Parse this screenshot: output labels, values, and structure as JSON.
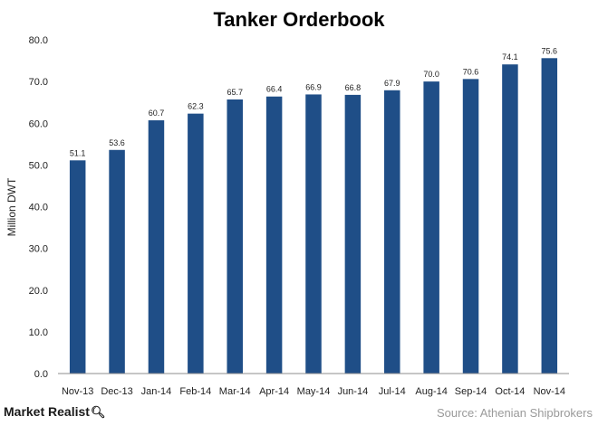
{
  "chart_data": {
    "type": "bar",
    "title": "Tanker Orderbook",
    "ylabel": "Million DWT",
    "xlabel": "",
    "categories": [
      "Nov-13",
      "Dec-13",
      "Jan-14",
      "Feb-14",
      "Mar-14",
      "Apr-14",
      "May-14",
      "Jun-14",
      "Jul-14",
      "Aug-14",
      "Sep-14",
      "Oct-14",
      "Nov-14"
    ],
    "values": [
      51.1,
      53.6,
      60.7,
      62.3,
      65.7,
      66.4,
      66.9,
      66.8,
      67.9,
      70.0,
      70.6,
      74.1,
      75.6
    ],
    "data_labels": [
      "51.1",
      "53.6",
      "60.7",
      "62.3",
      "65.7",
      "66.4",
      "66.9",
      "66.8",
      "67.9",
      "70.0",
      "70.6",
      "74.1",
      "75.6"
    ],
    "ylim": [
      0,
      80
    ],
    "y_ticks": [
      "0.0",
      "10.0",
      "20.0",
      "30.0",
      "40.0",
      "50.0",
      "60.0",
      "70.0",
      "80.0"
    ],
    "grid": false,
    "bar_color": "#1f4e87"
  },
  "footer": {
    "brand": "Market Realist",
    "brand_icon": "magnifier-icon",
    "source": "Source: Athenian Shipbrokers"
  }
}
